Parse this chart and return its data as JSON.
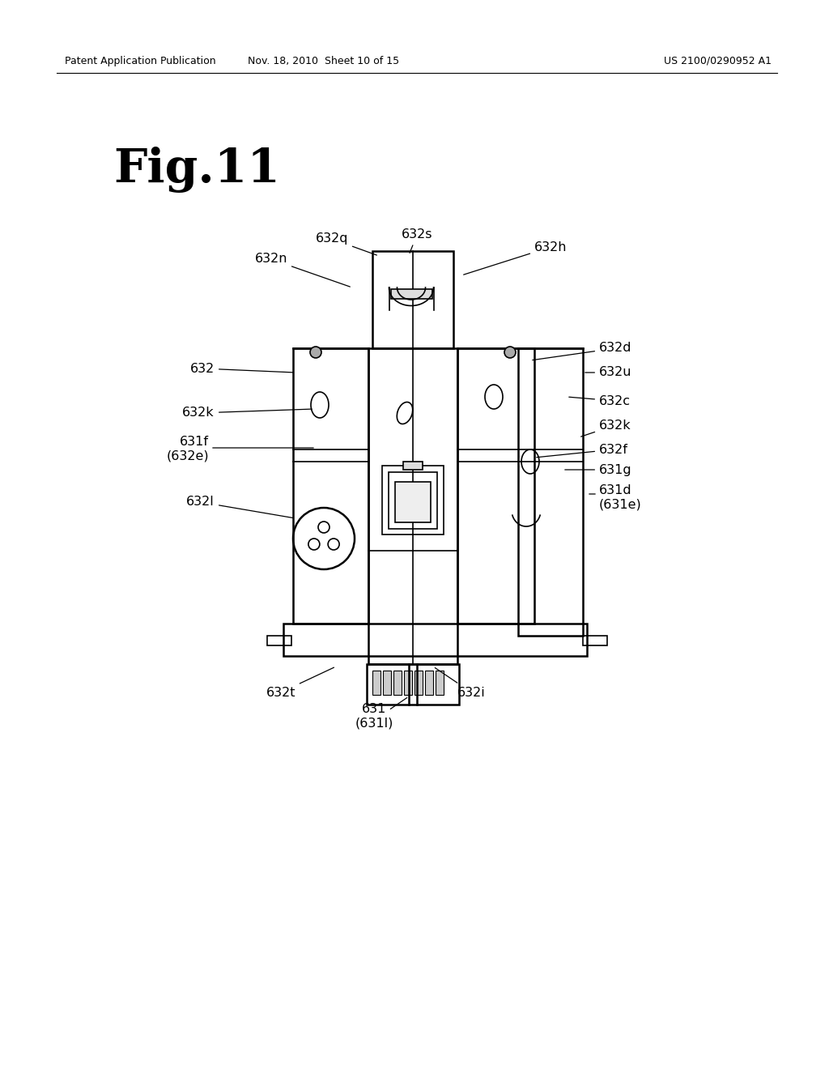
{
  "bg_color": "#ffffff",
  "header_left": "Patent Application Publication",
  "header_mid": "Nov. 18, 2010  Sheet 10 of 15",
  "header_right": "US 2100/0290952 A1",
  "fig_title": "Fig.11"
}
